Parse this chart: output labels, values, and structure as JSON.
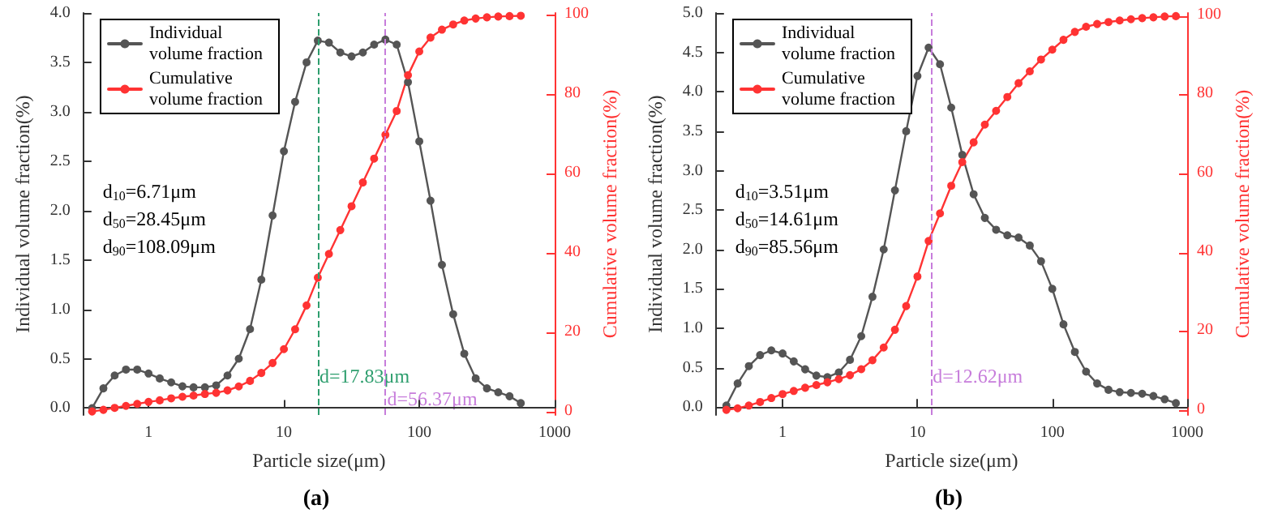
{
  "chart_data": [
    {
      "type": "line",
      "title": "(a)",
      "xlabel": "Particle size(μm)",
      "ylabel": "Individual volume fraction(%)",
      "y2label": "Cumulative volume fraction(%)",
      "log": "x",
      "grid": false,
      "legend": "top left",
      "marker": "circle",
      "line_style": "solid",
      "x": [
        0.383,
        0.464,
        0.562,
        0.681,
        0.825,
        1,
        1.21,
        1.47,
        1.78,
        2.15,
        2.61,
        3.16,
        3.83,
        4.64,
        5.62,
        6.81,
        8.25,
        10,
        12.1,
        14.7,
        17.8,
        21.5,
        26.1,
        31.6,
        38.3,
        46.4,
        56.2,
        68.1,
        82.5,
        100,
        121,
        147,
        178,
        215,
        261,
        316,
        383,
        464,
        562
      ],
      "xlim": [
        0.33,
        1000
      ],
      "xticks": [
        1,
        10,
        100,
        1000
      ],
      "ylim": [
        -0.07,
        4
      ],
      "yticks": [
        {
          "value": 0,
          "label": "0.0"
        },
        {
          "value": 0.5,
          "label": "0.5"
        },
        {
          "value": 1,
          "label": "1.0"
        },
        {
          "value": 1.5,
          "label": "1.5"
        },
        {
          "value": 2,
          "label": "2.0"
        },
        {
          "value": 2.5,
          "label": "2.5"
        },
        {
          "value": 3,
          "label": "3.0"
        },
        {
          "value": 3.5,
          "label": "3.5"
        },
        {
          "value": 4,
          "label": "4.0"
        }
      ],
      "y2lim": [
        -0.6,
        100.7
      ],
      "y2ticks": [
        0,
        20,
        40,
        60,
        80,
        100
      ],
      "series": [
        {
          "name": "Individual volume fraction",
          "color": "#555555",
          "values": [
            0.0,
            0.2,
            0.33,
            0.39,
            0.39,
            0.35,
            0.3,
            0.26,
            0.22,
            0.21,
            0.21,
            0.23,
            0.33,
            0.5,
            0.8,
            1.3,
            1.95,
            2.6,
            3.1,
            3.5,
            3.72,
            3.7,
            3.6,
            3.56,
            3.6,
            3.68,
            3.73,
            3.68,
            3.3,
            2.7,
            2.1,
            1.45,
            0.95,
            0.55,
            0.3,
            0.2,
            0.16,
            0.12,
            0.05
          ]
        },
        {
          "name": "Cumulative volume fraction",
          "color": "#ff3333",
          "axis": "y2",
          "values": [
            0.3,
            0.7,
            1.2,
            1.7,
            2.2,
            2.7,
            3.1,
            3.6,
            4.0,
            4.3,
            4.7,
            5.0,
            5.6,
            6.6,
            8,
            10,
            12.5,
            16,
            21,
            27,
            34,
            40,
            46,
            52,
            58,
            64,
            70,
            76,
            85,
            91,
            94.5,
            96.5,
            97.8,
            98.8,
            99.3,
            99.6,
            99.8,
            99.9,
            100
          ]
        }
      ],
      "ref_lines": [
        {
          "axis": "x",
          "value": 17.83,
          "label": "d=17.83μm",
          "color": "#2e9e6e",
          "line_style": "dashed"
        },
        {
          "axis": "x",
          "value": 56.37,
          "label": "d=56.37μm",
          "color": "#c77ddb",
          "line_style": "dashed"
        }
      ],
      "annotations": [
        "d$_{10}$=6.71μm",
        "d$_{50}$=28.45μm",
        "d$_{90}$=108.09μm"
      ]
    },
    {
      "type": "line",
      "title": "(b)",
      "xlabel": "Particle size(μm)",
      "ylabel": "Individual volume fraction(%)",
      "y2label": "Cumulative volume fraction(%)",
      "log": "x",
      "grid": false,
      "legend": "top left",
      "marker": "circle",
      "line_style": "solid",
      "x": [
        0.383,
        0.464,
        0.562,
        0.681,
        0.825,
        1,
        1.21,
        1.47,
        1.78,
        2.15,
        2.61,
        3.16,
        3.83,
        4.64,
        5.62,
        6.81,
        8.25,
        10,
        12.1,
        14.7,
        17.8,
        21.5,
        26.1,
        31.6,
        38.3,
        46.4,
        56.2,
        68.1,
        82.5,
        100,
        121,
        147,
        178,
        215,
        261,
        316,
        383,
        464,
        562,
        681,
        825
      ],
      "xlim": [
        0.32,
        1000
      ],
      "xticks": [
        1,
        10,
        100,
        1000
      ],
      "ylim": [
        -0.1,
        5
      ],
      "yticks": [
        {
          "value": 0,
          "label": "0.0"
        },
        {
          "value": 0.5,
          "label": "0.5"
        },
        {
          "value": 1,
          "label": "1.0"
        },
        {
          "value": 1.5,
          "label": "1.5"
        },
        {
          "value": 2,
          "label": "2.0"
        },
        {
          "value": 2.5,
          "label": "2.5"
        },
        {
          "value": 3,
          "label": "3.0"
        },
        {
          "value": 3.5,
          "label": "3.5"
        },
        {
          "value": 4,
          "label": "4.0"
        },
        {
          "value": 4.5,
          "label": "4.5"
        },
        {
          "value": 5,
          "label": "5.0"
        }
      ],
      "y2lim": [
        -1.1,
        100.8
      ],
      "y2ticks": [
        0,
        20,
        40,
        60,
        80,
        100
      ],
      "series": [
        {
          "name": "Individual volume fraction",
          "color": "#555555",
          "values": [
            0.02,
            0.3,
            0.52,
            0.66,
            0.72,
            0.68,
            0.58,
            0.48,
            0.4,
            0.38,
            0.44,
            0.6,
            0.9,
            1.4,
            2.0,
            2.75,
            3.5,
            4.2,
            4.56,
            4.35,
            3.8,
            3.2,
            2.7,
            2.4,
            2.25,
            2.18,
            2.15,
            2.05,
            1.85,
            1.5,
            1.05,
            0.7,
            0.45,
            0.3,
            0.22,
            0.19,
            0.18,
            0.17,
            0.14,
            0.1,
            0.05
          ]
        },
        {
          "name": "Cumulative volume fraction",
          "color": "#ff3333",
          "axis": "y2",
          "values": [
            0.2,
            0.6,
            1.3,
            2.2,
            3.2,
            4.2,
            5.0,
            5.8,
            6.5,
            7.2,
            8.0,
            9.0,
            10.5,
            12.8,
            16,
            20.5,
            26.5,
            34,
            43,
            50,
            57,
            63,
            68,
            72.5,
            76,
            79.5,
            83,
            86,
            89,
            91.5,
            94,
            96,
            97.3,
            98,
            98.5,
            98.9,
            99.2,
            99.5,
            99.7,
            99.9,
            100
          ]
        }
      ],
      "ref_lines": [
        {
          "axis": "x",
          "value": 12.62,
          "label": "d=12.62μm",
          "color": "#c77ddb",
          "line_style": "dashed"
        }
      ],
      "annotations": [
        "d$_{10}$=3.51μm",
        "d$_{50}$=14.61μm",
        "d$_{90}$=85.56μm"
      ]
    }
  ]
}
